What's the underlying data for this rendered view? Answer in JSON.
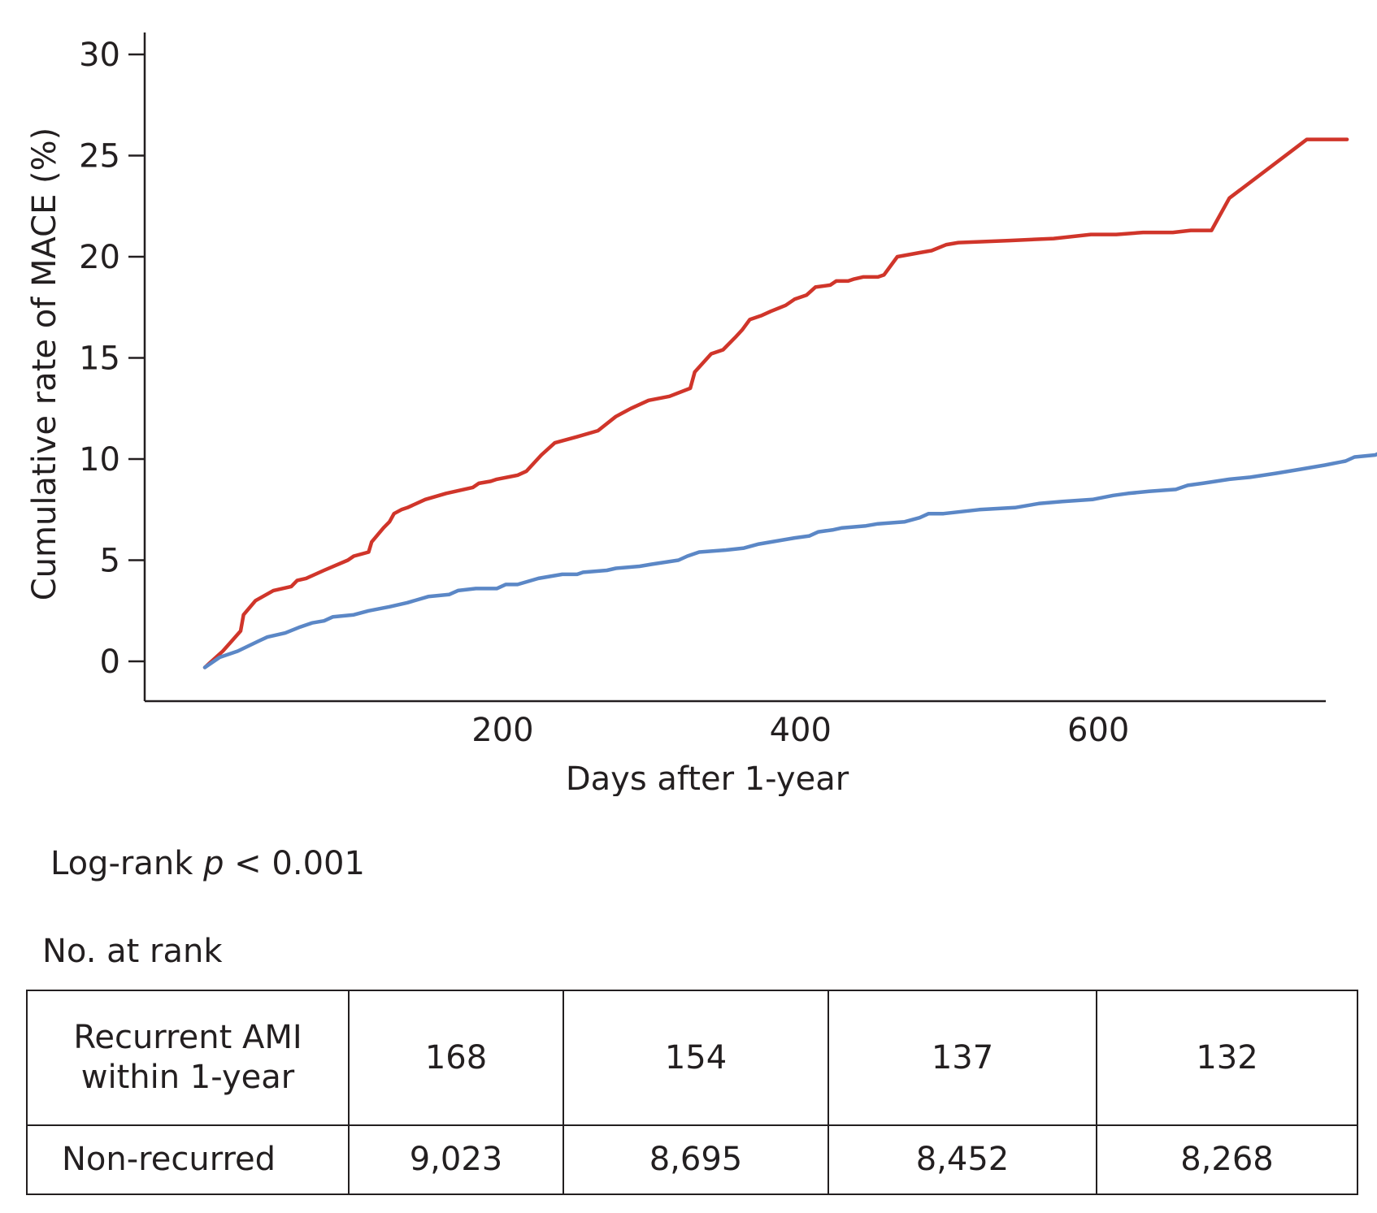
{
  "chart_data": {
    "type": "line",
    "xlabel": "Days after 1-year",
    "ylabel": "Cumulative rate of MACE (%)",
    "xlim": [
      -100,
      765
    ],
    "ylim": [
      -2,
      31
    ],
    "xticks": [
      200,
      400,
      600
    ],
    "yticks": [
      0,
      5,
      10,
      15,
      20,
      25,
      30
    ],
    "grid": false,
    "series": [
      {
        "color": "#d0352a",
        "points": [
          [
            0,
            -0.3
          ],
          [
            12,
            0.5
          ],
          [
            18,
            1.0
          ],
          [
            24,
            1.5
          ],
          [
            26,
            2.3
          ],
          [
            34,
            3.0
          ],
          [
            46,
            3.5
          ],
          [
            58,
            3.7
          ],
          [
            62,
            4.0
          ],
          [
            68,
            4.1
          ],
          [
            80,
            4.5
          ],
          [
            96,
            5.0
          ],
          [
            100,
            5.2
          ],
          [
            110,
            5.4
          ],
          [
            112,
            5.9
          ],
          [
            120,
            6.6
          ],
          [
            124,
            6.9
          ],
          [
            127,
            7.3
          ],
          [
            132,
            7.5
          ],
          [
            136,
            7.6
          ],
          [
            148,
            8.0
          ],
          [
            162,
            8.3
          ],
          [
            180,
            8.6
          ],
          [
            184,
            8.8
          ],
          [
            192,
            8.9
          ],
          [
            196,
            9.0
          ],
          [
            210,
            9.2
          ],
          [
            216,
            9.4
          ],
          [
            226,
            10.2
          ],
          [
            235,
            10.8
          ],
          [
            250,
            11.1
          ],
          [
            264,
            11.4
          ],
          [
            276,
            12.1
          ],
          [
            286,
            12.5
          ],
          [
            298,
            12.9
          ],
          [
            312,
            13.1
          ],
          [
            326,
            13.5
          ],
          [
            329,
            14.3
          ],
          [
            340,
            15.2
          ],
          [
            348,
            15.4
          ],
          [
            356,
            16.0
          ],
          [
            361,
            16.4
          ],
          [
            366,
            16.9
          ],
          [
            374,
            17.1
          ],
          [
            380,
            17.3
          ],
          [
            390,
            17.6
          ],
          [
            396,
            17.9
          ],
          [
            404,
            18.1
          ],
          [
            410,
            18.5
          ],
          [
            420,
            18.6
          ],
          [
            424,
            18.8
          ],
          [
            432,
            18.8
          ],
          [
            436,
            18.9
          ],
          [
            442,
            19.0
          ],
          [
            452,
            19.0
          ],
          [
            456,
            19.1
          ],
          [
            465,
            20.0
          ],
          [
            480,
            20.2
          ],
          [
            488,
            20.3
          ],
          [
            498,
            20.6
          ],
          [
            506,
            20.7
          ],
          [
            540,
            20.8
          ],
          [
            570,
            20.9
          ],
          [
            595,
            21.1
          ],
          [
            612,
            21.1
          ],
          [
            630,
            21.2
          ],
          [
            650,
            21.2
          ],
          [
            662,
            21.3
          ],
          [
            676,
            21.3
          ],
          [
            688,
            22.9
          ],
          [
            740,
            25.8
          ],
          [
            767,
            25.8
          ]
        ]
      },
      {
        "color": "#5b87c6",
        "points": [
          [
            0,
            -0.3
          ],
          [
            10,
            0.2
          ],
          [
            22,
            0.5
          ],
          [
            36,
            1.0
          ],
          [
            42,
            1.2
          ],
          [
            54,
            1.4
          ],
          [
            64,
            1.7
          ],
          [
            72,
            1.9
          ],
          [
            80,
            2.0
          ],
          [
            86,
            2.2
          ],
          [
            100,
            2.3
          ],
          [
            110,
            2.5
          ],
          [
            124,
            2.7
          ],
          [
            136,
            2.9
          ],
          [
            150,
            3.2
          ],
          [
            164,
            3.3
          ],
          [
            170,
            3.5
          ],
          [
            182,
            3.6
          ],
          [
            196,
            3.6
          ],
          [
            202,
            3.8
          ],
          [
            210,
            3.8
          ],
          [
            224,
            4.1
          ],
          [
            240,
            4.3
          ],
          [
            250,
            4.3
          ],
          [
            254,
            4.4
          ],
          [
            270,
            4.5
          ],
          [
            276,
            4.6
          ],
          [
            292,
            4.7
          ],
          [
            300,
            4.8
          ],
          [
            318,
            5.0
          ],
          [
            324,
            5.2
          ],
          [
            332,
            5.4
          ],
          [
            350,
            5.5
          ],
          [
            362,
            5.6
          ],
          [
            372,
            5.8
          ],
          [
            380,
            5.9
          ],
          [
            396,
            6.1
          ],
          [
            406,
            6.2
          ],
          [
            412,
            6.4
          ],
          [
            422,
            6.5
          ],
          [
            428,
            6.6
          ],
          [
            444,
            6.7
          ],
          [
            452,
            6.8
          ],
          [
            470,
            6.9
          ],
          [
            480,
            7.1
          ],
          [
            486,
            7.3
          ],
          [
            496,
            7.3
          ],
          [
            520,
            7.5
          ],
          [
            544,
            7.6
          ],
          [
            560,
            7.8
          ],
          [
            576,
            7.9
          ],
          [
            596,
            8.0
          ],
          [
            610,
            8.2
          ],
          [
            620,
            8.3
          ],
          [
            634,
            8.4
          ],
          [
            652,
            8.5
          ],
          [
            660,
            8.7
          ],
          [
            670,
            8.8
          ],
          [
            688,
            9.0
          ],
          [
            702,
            9.1
          ],
          [
            720,
            9.3
          ],
          [
            736,
            9.5
          ],
          [
            752,
            9.7
          ],
          [
            766,
            9.9
          ],
          [
            772,
            10.1
          ],
          [
            786,
            10.2
          ],
          [
            794,
            10.5
          ],
          [
            800,
            10.5
          ],
          [
            808,
            10.7
          ],
          [
            816,
            10.9
          ]
        ]
      }
    ]
  },
  "annotation": {
    "logrank_prefix": "Log-rank ",
    "logrank_p": "p",
    "logrank_suffix": " < 0.001"
  },
  "risk_table": {
    "title": "No. at rank",
    "rows": [
      {
        "label_line1": "Recurrent AMI",
        "label_line2": "within 1-year",
        "values": [
          "168",
          "154",
          "137",
          "132"
        ]
      },
      {
        "label": "Non-recurred",
        "values": [
          "9,023",
          "8,695",
          "8,452",
          "8,268"
        ]
      }
    ]
  }
}
